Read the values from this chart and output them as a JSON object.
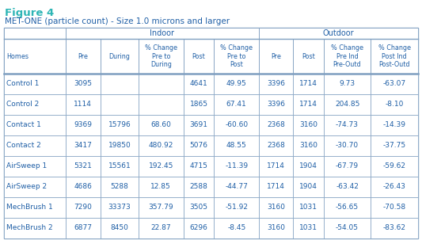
{
  "figure_label": "Figure 4",
  "figure_label_color": "#2db5b5",
  "subtitle": "MET-ONE (particle count) - Size 1.0 microns and larger",
  "subtitle_color": "#1f5fa6",
  "bg_color": "#ffffff",
  "header_text_color": "#1f5fa6",
  "row_text_color": "#1f5fa6",
  "border_color": "#7f9fc0",
  "col_headers": [
    "Homes",
    "Pre",
    "During",
    "% Change\nPre to\nDuring",
    "Post",
    "% Change\nPre to\nPost",
    "Pre",
    "Post",
    "% Change\nPre Ind\nPre-Outd",
    "% Change\nPost Ind\nPost-Outd"
  ],
  "rows": [
    [
      "Control 1",
      "3095",
      "",
      "",
      "4641",
      "49.95",
      "3396",
      "1714",
      "9.73",
      "-63.07"
    ],
    [
      "Control 2",
      "1114",
      "",
      "",
      "1865",
      "67.41",
      "3396",
      "1714",
      "204.85",
      "-8.10"
    ],
    [
      "Contact 1",
      "9369",
      "15796",
      "68.60",
      "3691",
      "-60.60",
      "2368",
      "3160",
      "-74.73",
      "-14.39"
    ],
    [
      "Contact 2",
      "3417",
      "19850",
      "480.92",
      "5076",
      "48.55",
      "2368",
      "3160",
      "-30.70",
      "-37.75"
    ],
    [
      "AirSweep 1",
      "5321",
      "15561",
      "192.45",
      "4715",
      "-11.39",
      "1714",
      "1904",
      "-67.79",
      "-59.62"
    ],
    [
      "AirSweep 2",
      "4686",
      "5288",
      "12.85",
      "2588",
      "-44.77",
      "1714",
      "1904",
      "-63.42",
      "-26.43"
    ],
    [
      "MechBrush 1",
      "7290",
      "33373",
      "357.79",
      "3505",
      "-51.92",
      "3160",
      "1031",
      "-56.65",
      "-70.58"
    ],
    [
      "MechBrush 2",
      "6877",
      "8450",
      "22.87",
      "6296",
      "-8.45",
      "3160",
      "1031",
      "-54.05",
      "-83.62"
    ]
  ],
  "col_widths": [
    1.3,
    0.75,
    0.8,
    0.95,
    0.65,
    0.95,
    0.72,
    0.65,
    1.0,
    1.0
  ],
  "figure_size": [
    5.33,
    3.03
  ],
  "dpi": 100
}
